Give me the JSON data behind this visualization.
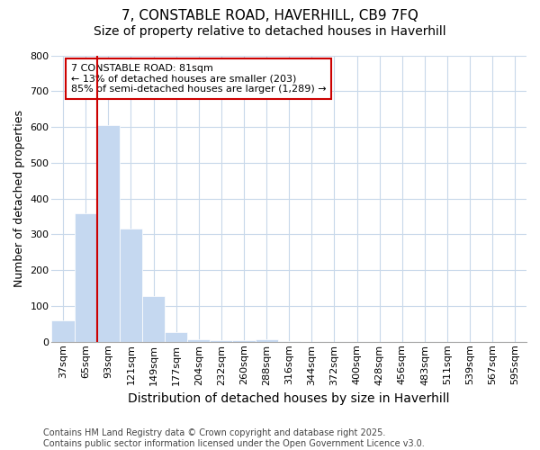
{
  "title_line1": "7, CONSTABLE ROAD, HAVERHILL, CB9 7FQ",
  "title_line2": "Size of property relative to detached houses in Haverhill",
  "xlabel": "Distribution of detached houses by size in Haverhill",
  "ylabel": "Number of detached properties",
  "categories": [
    "37sqm",
    "65sqm",
    "93sqm",
    "121sqm",
    "149sqm",
    "177sqm",
    "204sqm",
    "232sqm",
    "260sqm",
    "288sqm",
    "316sqm",
    "344sqm",
    "372sqm",
    "400sqm",
    "428sqm",
    "456sqm",
    "483sqm",
    "511sqm",
    "539sqm",
    "567sqm",
    "595sqm"
  ],
  "values": [
    60,
    360,
    605,
    317,
    128,
    28,
    8,
    5,
    5,
    8,
    3,
    0,
    0,
    0,
    0,
    0,
    0,
    0,
    0,
    0,
    0
  ],
  "bar_color": "#c5d8f0",
  "bar_edgecolor": "#c5d8f0",
  "vline_color": "#cc0000",
  "annotation_text": "7 CONSTABLE ROAD: 81sqm\n← 13% of detached houses are smaller (203)\n85% of semi-detached houses are larger (1,289) →",
  "annotation_box_color": "#ffffff",
  "annotation_box_edgecolor": "#cc0000",
  "ylim": [
    0,
    800
  ],
  "yticks": [
    0,
    100,
    200,
    300,
    400,
    500,
    600,
    700,
    800
  ],
  "grid_color": "#c8d8ea",
  "bg_color": "#ffffff",
  "plot_bg_color": "#ffffff",
  "footer_text": "Contains HM Land Registry data © Crown copyright and database right 2025.\nContains public sector information licensed under the Open Government Licence v3.0.",
  "title_fontsize": 11,
  "subtitle_fontsize": 10,
  "xlabel_fontsize": 10,
  "ylabel_fontsize": 9,
  "tick_fontsize": 8,
  "annotation_fontsize": 8,
  "footer_fontsize": 7
}
